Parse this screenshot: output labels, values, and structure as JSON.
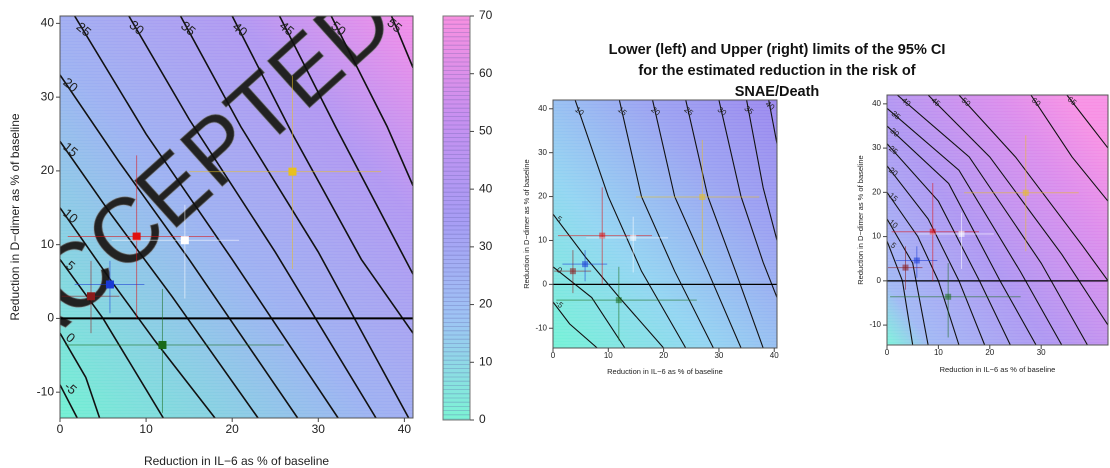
{
  "title": "Lower (left) and Upper (right) limits of the 95% CI for the estimated reduction in the risk of SNAE/Death",
  "chart_data": [
    {
      "type": "contour",
      "xlabel": "Reduction in IL−6 as % of baseline",
      "ylabel": "Reduction in D−dimer as % of baseline",
      "watermark": "ACCEPTED",
      "xlim": [
        0,
        41
      ],
      "ylim": [
        -13.5,
        41
      ],
      "xticks": [
        0,
        10,
        20,
        30,
        40
      ],
      "yticks": [
        -10,
        0,
        10,
        20,
        30,
        40
      ],
      "contours": [
        {
          "level": -5,
          "x": [
            0,
            2
          ],
          "y": [
            -9,
            -13.5
          ]
        },
        {
          "level": 0,
          "x": [
            0,
            3,
            4.6
          ],
          "y": [
            -2,
            -8,
            -13.5
          ]
        },
        {
          "level": 5,
          "x": [
            0,
            5,
            12
          ],
          "y": [
            8,
            0,
            -13.5
          ]
        },
        {
          "level": 10,
          "x": [
            0,
            6,
            11,
            18
          ],
          "y": [
            15,
            5,
            -3,
            -13.5
          ]
        },
        {
          "level": 15,
          "x": [
            0,
            6,
            13,
            23
          ],
          "y": [
            24,
            14,
            3,
            -13.5
          ]
        },
        {
          "level": 20,
          "x": [
            0,
            7,
            15,
            27.6
          ],
          "y": [
            33,
            21,
            8,
            -13.5
          ]
        },
        {
          "level": 25,
          "x": [
            1.7,
            10,
            20,
            32.3
          ],
          "y": [
            41,
            25,
            8,
            -13.5
          ]
        },
        {
          "level": 30,
          "x": [
            8,
            15,
            25,
            36.7
          ],
          "y": [
            41,
            27,
            9,
            -13.5
          ]
        },
        {
          "level": 35,
          "x": [
            14,
            21,
            30,
            40.5
          ],
          "y": [
            41,
            26,
            9,
            -13.5
          ]
        },
        {
          "level": 40,
          "x": [
            20,
            27,
            35,
            41
          ],
          "y": [
            41,
            25,
            8,
            -2
          ]
        },
        {
          "level": 45,
          "x": [
            25.5,
            32,
            41
          ],
          "y": [
            41,
            26,
            6
          ]
        },
        {
          "level": 50,
          "x": [
            31.5,
            38,
            41
          ],
          "y": [
            41,
            26,
            18
          ]
        },
        {
          "level": 55,
          "x": [
            38.5,
            41
          ],
          "y": [
            41,
            34
          ]
        }
      ],
      "points": [
        {
          "color": "#8b1a1a",
          "x": 3.6,
          "y": 3.0,
          "x_low": 0.2,
          "x_high": 6.9,
          "y_low": -2.0,
          "y_high": 7.8
        },
        {
          "color": "#1a3ad6",
          "x": 5.8,
          "y": 4.6,
          "x_low": 1.7,
          "x_high": 9.8,
          "y_low": 0.7,
          "y_high": 7.8
        },
        {
          "color": "#e01010",
          "x": 8.9,
          "y": 11.1,
          "x_low": 0.9,
          "x_high": 17.9,
          "y_low": 0,
          "y_high": 22.1
        },
        {
          "color": "#ffffff",
          "x": 14.5,
          "y": 10.6,
          "x_low": 6,
          "x_high": 20.8,
          "y_low": 2.7,
          "y_high": 15.4
        },
        {
          "color": "#e8c020",
          "x": 27,
          "y": 19.9,
          "x_low": 15,
          "x_high": 37.3,
          "y_low": 6.7,
          "y_high": 32.9
        },
        {
          "color": "#1a6a1a",
          "x": 11.9,
          "y": -3.6,
          "x_low": 0.6,
          "x_high": 26,
          "y_low": -12.8,
          "y_high": 4
        }
      ]
    },
    {
      "type": "colorbar",
      "ylim": [
        0,
        70
      ],
      "yticks": [
        0,
        10,
        20,
        30,
        40,
        50,
        60,
        70
      ],
      "colors": [
        "#7cf4d4",
        "#9ec4f4",
        "#a89cf4",
        "#c890f0",
        "#f890e0"
      ]
    },
    {
      "type": "contour",
      "xlabel": "Reduction in IL−6 as % of baseline",
      "ylabel": "Reduction in D−dimer as % of baseline",
      "xlim": [
        0,
        40.5
      ],
      "ylim": [
        -14.5,
        42
      ],
      "xticks": [
        0,
        10,
        20,
        30,
        40
      ],
      "yticks": [
        -10,
        0,
        10,
        20,
        30,
        40
      ],
      "contours": [
        {
          "level": -5,
          "x": [
            0,
            3,
            8
          ],
          "y": [
            -4,
            -9,
            -14.5
          ]
        },
        {
          "level": 0,
          "x": [
            0,
            7,
            13
          ],
          "y": [
            4,
            -3,
            -14.5
          ]
        },
        {
          "level": 5,
          "x": [
            0,
            6,
            12,
            20
          ],
          "y": [
            16,
            6,
            -3,
            -14.5
          ]
        },
        {
          "level": 10,
          "x": [
            4,
            10,
            16,
            24
          ],
          "y": [
            42,
            20,
            3,
            -14.5
          ]
        },
        {
          "level": 15,
          "x": [
            12,
            16,
            22,
            29
          ],
          "y": [
            42,
            20,
            3,
            -14.5
          ]
        },
        {
          "level": 20,
          "x": [
            18,
            22,
            28,
            34
          ],
          "y": [
            42,
            20,
            3,
            -14.5
          ]
        },
        {
          "level": 25,
          "x": [
            24,
            28,
            33,
            38
          ],
          "y": [
            42,
            20,
            3,
            -14.5
          ]
        },
        {
          "level": 30,
          "x": [
            30,
            34,
            38,
            40.5
          ],
          "y": [
            42,
            20,
            5,
            -3
          ]
        },
        {
          "level": 35,
          "x": [
            35,
            38,
            40.5
          ],
          "y": [
            42,
            22,
            10
          ]
        },
        {
          "level": 40,
          "x": [
            39,
            40.5
          ],
          "y": [
            42,
            32
          ]
        }
      ],
      "points": [
        {
          "color": "#8b1a1a",
          "x": 3.6,
          "y": 3.0,
          "x_low": 0.2,
          "x_high": 6.9,
          "y_low": -2.0,
          "y_high": 7.8
        },
        {
          "color": "#1a3ad6",
          "x": 5.8,
          "y": 4.6,
          "x_low": 1.7,
          "x_high": 9.8,
          "y_low": 0.7,
          "y_high": 7.8
        },
        {
          "color": "#e01010",
          "x": 8.9,
          "y": 11.1,
          "x_low": 0.9,
          "x_high": 17.9,
          "y_low": 0,
          "y_high": 22.1
        },
        {
          "color": "#ffffff",
          "x": 14.5,
          "y": 10.6,
          "x_low": 6,
          "x_high": 20.8,
          "y_low": 2.7,
          "y_high": 15.4
        },
        {
          "color": "#e8c020",
          "x": 27,
          "y": 19.9,
          "x_low": 15,
          "x_high": 37.3,
          "y_low": 6.7,
          "y_high": 32.9
        },
        {
          "color": "#1a6a1a",
          "x": 11.9,
          "y": -3.6,
          "x_low": 0.6,
          "x_high": 26,
          "y_low": -12.8,
          "y_high": 4
        }
      ]
    },
    {
      "type": "contour",
      "xlabel": "Reduction in IL−6 as % of baseline",
      "ylabel": "Reduction in D−dimer as % of baseline",
      "xlim": [
        0,
        43
      ],
      "ylim": [
        -14.5,
        42
      ],
      "xticks": [
        0,
        10,
        20,
        30
      ],
      "yticks": [
        -10,
        0,
        10,
        20,
        30,
        40
      ],
      "contours": [
        {
          "level": 5,
          "x": [
            0,
            3,
            5
          ],
          "y": [
            9,
            0,
            -14.5
          ]
        },
        {
          "level": 10,
          "x": [
            0,
            5,
            8
          ],
          "y": [
            14,
            4,
            -14.5
          ]
        },
        {
          "level": 15,
          "x": [
            0,
            6,
            10,
            14
          ],
          "y": [
            20,
            10,
            0,
            -14.5
          ]
        },
        {
          "level": 20,
          "x": [
            0,
            8,
            14,
            19
          ],
          "y": [
            26,
            14,
            0,
            -14.5
          ]
        },
        {
          "level": 25,
          "x": [
            0,
            10,
            18,
            24
          ],
          "y": [
            31,
            18,
            0,
            -14.5
          ]
        },
        {
          "level": 30,
          "x": [
            0,
            12,
            22,
            29
          ],
          "y": [
            35,
            22,
            0,
            -14.5
          ]
        },
        {
          "level": 35,
          "x": [
            0,
            14,
            26,
            34
          ],
          "y": [
            39,
            25,
            2,
            -14.5
          ]
        },
        {
          "level": 40,
          "x": [
            2,
            16,
            30,
            39
          ],
          "y": [
            42,
            28,
            4,
            -14.5
          ]
        },
        {
          "level": 45,
          "x": [
            8,
            20,
            34,
            43
          ],
          "y": [
            42,
            28,
            6,
            -10
          ]
        },
        {
          "level": 50,
          "x": [
            14,
            25,
            38,
            43
          ],
          "y": [
            42,
            28,
            8,
            0
          ]
        },
        {
          "level": 60,
          "x": [
            28,
            36,
            43
          ],
          "y": [
            42,
            28,
            18
          ]
        },
        {
          "level": 65,
          "x": [
            35,
            43
          ],
          "y": [
            42,
            30
          ]
        }
      ],
      "points": [
        {
          "color": "#8b1a1a",
          "x": 3.6,
          "y": 3.0,
          "x_low": 0.2,
          "x_high": 6.9,
          "y_low": -2.0,
          "y_high": 7.8
        },
        {
          "color": "#1a3ad6",
          "x": 5.8,
          "y": 4.6,
          "x_low": 1.7,
          "x_high": 9.8,
          "y_low": 0.7,
          "y_high": 7.8
        },
        {
          "color": "#e01010",
          "x": 8.9,
          "y": 11.1,
          "x_low": 0.9,
          "x_high": 17.9,
          "y_low": 0,
          "y_high": 22.1
        },
        {
          "color": "#ffffff",
          "x": 14.5,
          "y": 10.6,
          "x_low": 6,
          "x_high": 20.8,
          "y_low": 2.7,
          "y_high": 15.4
        },
        {
          "color": "#e8c020",
          "x": 27,
          "y": 19.9,
          "x_low": 15,
          "x_high": 37.3,
          "y_low": 6.7,
          "y_high": 32.9
        },
        {
          "color": "#1a6a1a",
          "x": 11.9,
          "y": -3.6,
          "x_low": 0.6,
          "x_high": 26,
          "y_low": -12.8,
          "y_high": 4
        }
      ]
    }
  ]
}
